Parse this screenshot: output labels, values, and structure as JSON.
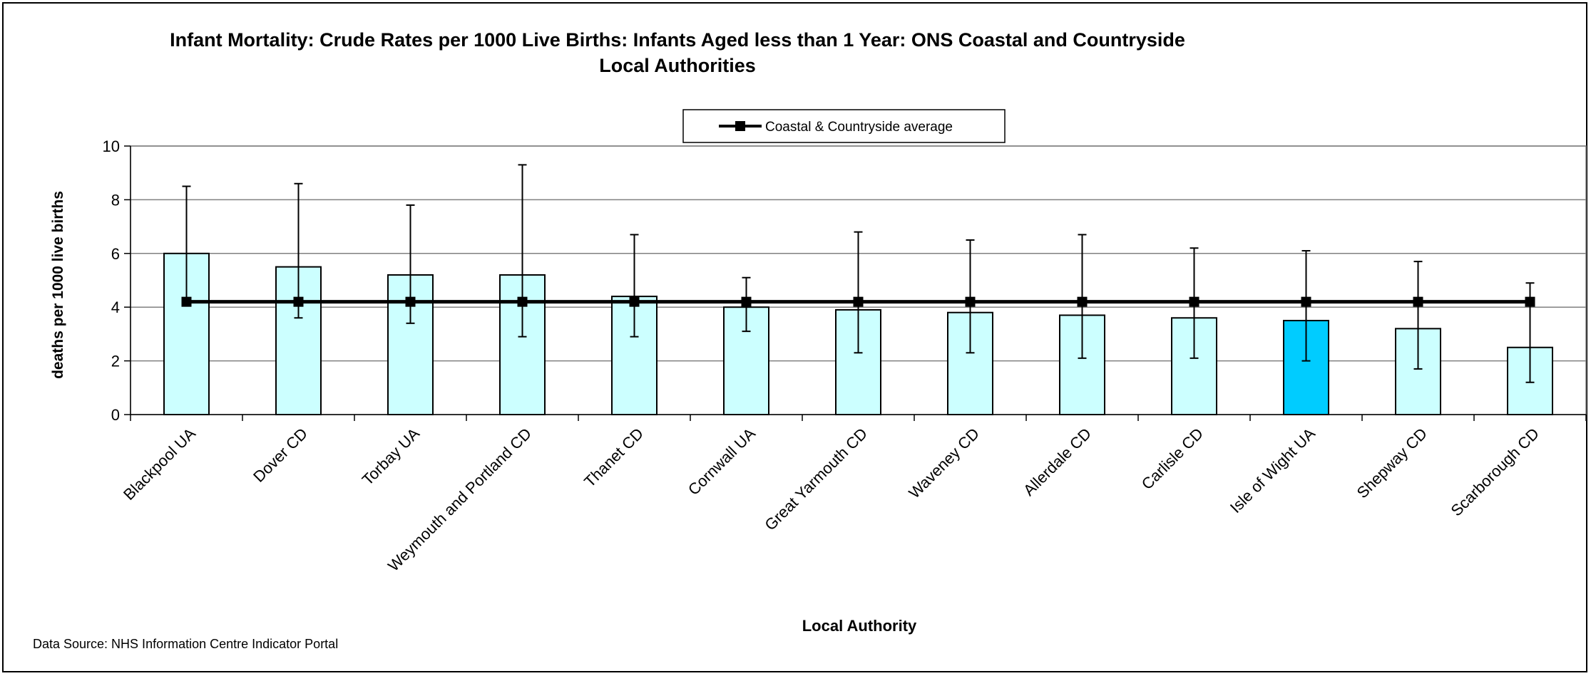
{
  "chart_data": {
    "type": "bar",
    "title": "Infant Mortality: Crude Rates per 1000 Live Births:  Infants Aged less than 1 Year: ONS Coastal and Countryside Local Authorities",
    "xlabel": "Local Authority",
    "ylabel": "deaths per 1000 live births",
    "ylim": [
      0,
      10
    ],
    "yticks": [
      0,
      2,
      4,
      6,
      8,
      10
    ],
    "grid": true,
    "legend_placement": "top-center",
    "categories": [
      "Blackpool UA",
      "Dover CD",
      "Torbay UA",
      "Weymouth and Portland CD",
      "Thanet CD",
      "Cornwall UA",
      "Great Yarmouth CD",
      "Waveney CD",
      "Allerdale CD",
      "Carlisle CD",
      "Isle of Wight UA",
      "Shepway CD",
      "Scarborough CD"
    ],
    "values": [
      6.0,
      5.5,
      5.2,
      5.2,
      4.4,
      4.0,
      3.9,
      3.8,
      3.7,
      3.6,
      3.5,
      3.2,
      2.5
    ],
    "ci_lower": [
      4.2,
      3.6,
      3.4,
      2.9,
      2.9,
      3.1,
      2.3,
      2.3,
      2.1,
      2.1,
      2.0,
      1.7,
      1.2
    ],
    "ci_upper": [
      8.5,
      8.6,
      7.8,
      9.3,
      6.7,
      5.1,
      6.8,
      6.5,
      6.7,
      6.2,
      6.1,
      5.7,
      4.9
    ],
    "highlight_category": "Isle of Wight UA",
    "average_series": {
      "name": "Coastal & Countryside average",
      "value": 4.2
    },
    "colors": {
      "bar": "#ccffff",
      "highlight": "#00ccff",
      "line": "#000000",
      "grid": "#808080"
    }
  },
  "footer": {
    "source": "Data Source:  NHS Information Centre Indicator Portal"
  }
}
